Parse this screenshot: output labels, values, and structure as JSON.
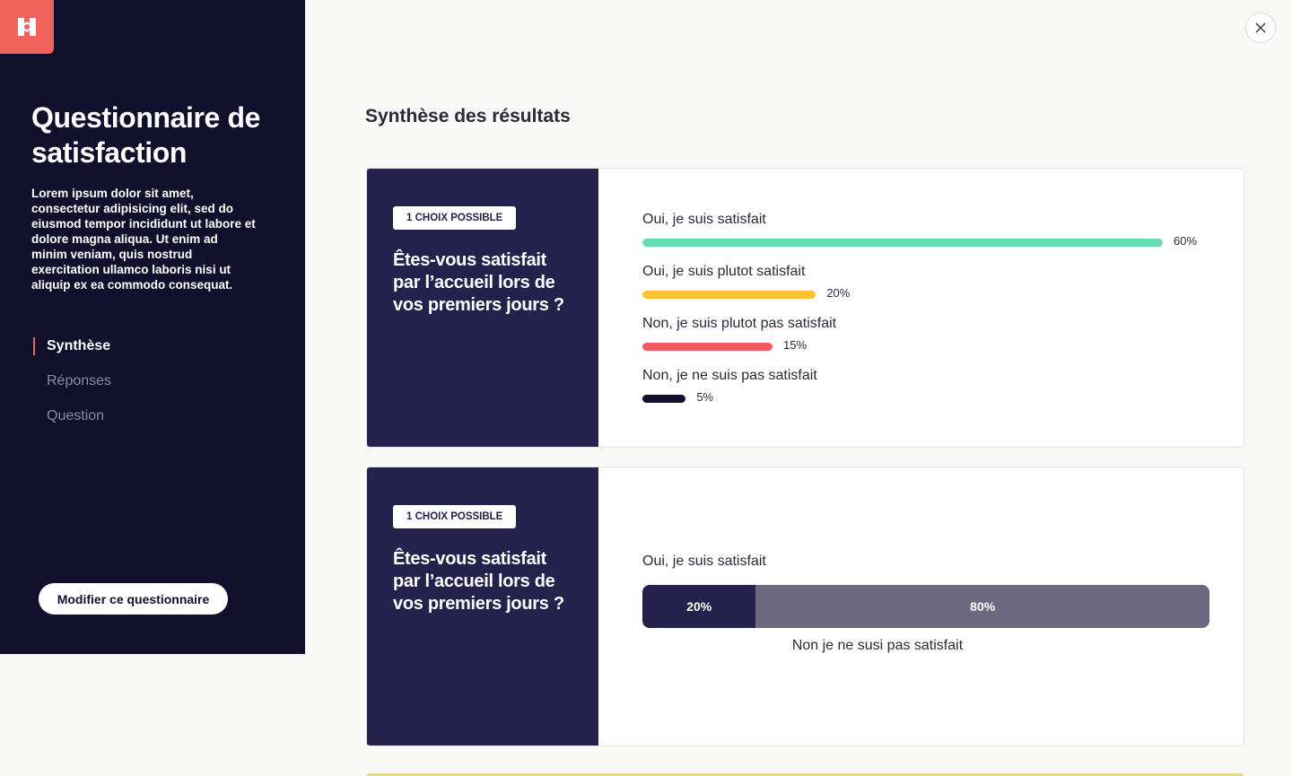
{
  "sidebar": {
    "logo": "logo-icon",
    "title": "Questionnaire de satisfaction",
    "description": "Lorem ipsum dolor sit amet, consectetur adipisicing elit, sed do eiusmod tempor incididunt ut labore et dolore magna aliqua. Ut enim ad minim veniam, quis nostrud exercitation ullamco laboris nisi ut aliquip ex ea commodo consequat.",
    "nav": [
      {
        "label": "Synthèse",
        "active": true
      },
      {
        "label": "Réponses",
        "active": false
      },
      {
        "label": "Question",
        "active": false
      }
    ],
    "modify_button": "Modifier ce questionnaire"
  },
  "close_icon": "close-icon",
  "main": {
    "title": "Synthèse des résultats",
    "cards": [
      {
        "badge": "1 CHOIX POSSIBLE",
        "question": "Êtes-vous satisfait par l’accueil lors de vos premiers jours ?",
        "answers": [
          {
            "label": "Oui, je suis satisfait",
            "percent": 60,
            "percent_label": "60%",
            "color": "#66dbb6"
          },
          {
            "label": "Oui, je suis plutot satisfait",
            "percent": 20,
            "percent_label": "20%",
            "color": "#fdc232"
          },
          {
            "label": "Non, je suis plutot pas satisfait",
            "percent": 15,
            "percent_label": "15%",
            "color": "#f5595e"
          },
          {
            "label": "Non, je ne suis pas satisfait",
            "percent": 5,
            "percent_label": "5%",
            "color": "#120f2d"
          }
        ]
      },
      {
        "badge": "1 CHOIX POSSIBLE",
        "question": "Êtes-vous satisfait par l’accueil lors de vos premiers jours ?",
        "top_label": "Oui, je suis satisfait",
        "bottom_label": "Non je ne susi pas satisfait",
        "segments": [
          {
            "percent": 20,
            "label": "20%",
            "color": "#25214d"
          },
          {
            "percent": 80,
            "label": "80%",
            "color": "#6b6880"
          }
        ]
      }
    ]
  }
}
